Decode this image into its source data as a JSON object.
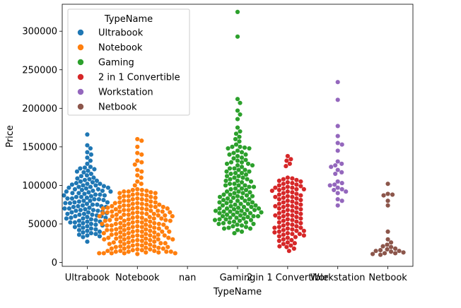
{
  "chart_data": {
    "type": "scatter",
    "subtype": "swarm",
    "xlabel": "TypeName",
    "ylabel": "Price",
    "categories": [
      "Ultrabook",
      "Notebook",
      "nan",
      "Gaming",
      "2 in 1 Convertible",
      "Workstation",
      "Netbook"
    ],
    "ylim": [
      -5000,
      335000
    ],
    "yticks": [
      0,
      50000,
      100000,
      150000,
      200000,
      250000,
      300000
    ],
    "grid": false,
    "legend": {
      "title": "TypeName",
      "placement": "top-left",
      "entries": [
        "Ultrabook",
        "Notebook",
        "Gaming",
        "2 in 1 Convertible",
        "Workstation",
        "Netbook"
      ]
    },
    "colors": {
      "Ultrabook": "#1f77b4",
      "Notebook": "#ff7f0e",
      "Gaming": "#2ca02c",
      "2 in 1 Convertible": "#d62728",
      "Workstation": "#9467bd",
      "Netbook": "#8c564b"
    },
    "series": [
      {
        "name": "Ultrabook",
        "values": [
          166000,
          152000,
          148000,
          143000,
          140000,
          136000,
          132000,
          128000,
          124000,
          123000,
          122000,
          121000,
          119000,
          118000,
          117000,
          115000,
          113000,
          112000,
          110000,
          109000,
          108000,
          107000,
          106000,
          105000,
          104000,
          103000,
          102000,
          101000,
          100000,
          99000,
          98000,
          97000,
          96000,
          95000,
          94000,
          93000,
          92000,
          91000,
          90000,
          89000,
          88000,
          87000,
          86000,
          85000,
          84000,
          83000,
          82000,
          81000,
          80000,
          79000,
          78000,
          77000,
          76000,
          75000,
          74000,
          73000,
          72000,
          71000,
          70000,
          69000,
          68000,
          67000,
          66000,
          65000,
          64000,
          63000,
          62000,
          61000,
          60000,
          59000,
          58000,
          57000,
          56000,
          55000,
          54000,
          53000,
          52000,
          51000,
          50000,
          49000,
          48000,
          47000,
          46000,
          45000,
          44000,
          43000,
          42000,
          41000,
          40000,
          39000,
          38000,
          37000,
          36000,
          35000,
          34000,
          33000,
          27000,
          100000,
          95000,
          90000,
          85000,
          80000,
          75000,
          70000,
          65000,
          60000,
          98000,
          93000,
          88000,
          83000,
          78000,
          73000,
          68000,
          63000,
          58000,
          53000,
          48000,
          102000,
          97000,
          92000,
          87000,
          82000,
          77000,
          72000,
          67000,
          62000,
          57000,
          52000
        ]
      },
      {
        "name": "Notebook",
        "values": [
          160000,
          158000,
          150000,
          142000,
          140000,
          132000,
          130000,
          127000,
          120000,
          118000,
          113000,
          110000,
          105000,
          102000,
          100000,
          95000,
          94000,
          93000,
          92000,
          91000,
          90000,
          89000,
          88000,
          87000,
          86000,
          85000,
          84000,
          83000,
          82000,
          81000,
          80000,
          79000,
          78000,
          77000,
          76000,
          75000,
          74000,
          73000,
          72000,
          71000,
          70000,
          69000,
          68000,
          67000,
          66000,
          65000,
          64000,
          63000,
          62000,
          61000,
          60000,
          59000,
          58000,
          57000,
          56000,
          55000,
          54000,
          53000,
          52000,
          51000,
          50000,
          49000,
          48000,
          47000,
          46000,
          45000,
          44000,
          43000,
          42000,
          41000,
          40000,
          39000,
          38000,
          37000,
          36000,
          35000,
          34000,
          33000,
          32000,
          31000,
          30000,
          29000,
          28000,
          27000,
          26000,
          25000,
          24000,
          23000,
          22000,
          21000,
          20000,
          19000,
          18000,
          17000,
          16000,
          15000,
          14000,
          13000,
          12000,
          11000,
          80000,
          75000,
          70000,
          65000,
          60000,
          55000,
          50000,
          45000,
          40000,
          35000,
          30000,
          25000,
          20000,
          15000,
          12000,
          78000,
          72000,
          66000,
          60000,
          54000,
          48000,
          42000,
          36000,
          30000,
          24000,
          18000,
          13000,
          82000,
          76000,
          70000,
          64000,
          58000,
          52000,
          46000,
          40000,
          34000,
          28000,
          22000,
          16000,
          12000,
          84000,
          77000,
          68000,
          59000,
          50000,
          41000,
          32000,
          23000,
          14000,
          86000,
          74000,
          62000,
          50000,
          38000,
          26000,
          14000,
          88000,
          70000,
          56000,
          44000,
          32000,
          20000,
          12000,
          90000,
          72000,
          54000,
          36000,
          18000,
          92000,
          66000,
          40000,
          14000,
          94000,
          62000,
          30000,
          12000,
          35000,
          42000,
          48000,
          58000,
          64000,
          71000,
          27000,
          33000,
          39000,
          45000,
          51000,
          57000,
          63000,
          69000,
          17000,
          21000,
          29000,
          37000,
          43000,
          49000,
          53000,
          61000,
          67000,
          73000,
          19000,
          15000,
          25000,
          31000,
          47000,
          55000,
          65000
        ]
      },
      {
        "name": "Gaming",
        "values": [
          325000,
          293000,
          212000,
          207000,
          197000,
          192000,
          186000,
          175000,
          170000,
          167000,
          163000,
          160000,
          157000,
          153000,
          150000,
          149000,
          148000,
          145000,
          143000,
          140000,
          138000,
          135000,
          133000,
          130000,
          128000,
          126000,
          124000,
          122000,
          120000,
          118000,
          116000,
          114000,
          112000,
          110000,
          108000,
          106000,
          104000,
          102000,
          100000,
          98000,
          96000,
          94000,
          92000,
          90000,
          88000,
          86000,
          84000,
          82000,
          80000,
          78000,
          76000,
          74000,
          72000,
          70000,
          68000,
          66000,
          64000,
          62000,
          60000,
          58000,
          56000,
          54000,
          52000,
          50000,
          48000,
          46000,
          44000,
          42000,
          40000,
          38000,
          150000,
          140000,
          130000,
          120000,
          110000,
          100000,
          90000,
          80000,
          75000,
          70000,
          65000,
          60000,
          55000,
          50000,
          45000,
          148000,
          136000,
          126000,
          116000,
          106000,
          96000,
          86000,
          78000,
          72000,
          66000,
          62000,
          58000,
          53000,
          47000,
          142000,
          132000,
          122000,
          112000,
          102000,
          92000,
          84000,
          76000,
          68000,
          63000,
          57000,
          51000,
          44000,
          128000,
          118000,
          108000,
          98000,
          88000,
          81000,
          73000,
          67000,
          61000,
          55000,
          49000,
          115000,
          105000,
          95000,
          87000,
          79000,
          71000,
          64000,
          59000,
          52000,
          100000,
          91000,
          83000,
          77000,
          69000,
          65000,
          56000,
          85000,
          74000,
          67000,
          60000,
          70000
        ]
      },
      {
        "name": "2 in 1 Convertible",
        "values": [
          138000,
          134000,
          132000,
          128000,
          125000,
          110000,
          108000,
          106000,
          104000,
          102000,
          100000,
          98000,
          96000,
          94000,
          92000,
          90000,
          88000,
          86000,
          84000,
          82000,
          80000,
          78000,
          76000,
          74000,
          72000,
          70000,
          68000,
          66000,
          64000,
          62000,
          60000,
          58000,
          56000,
          54000,
          52000,
          50000,
          48000,
          46000,
          44000,
          42000,
          40000,
          38000,
          36000,
          34000,
          32000,
          30000,
          28000,
          26000,
          24000,
          22000,
          20000,
          18000,
          15000,
          105000,
          97000,
          89000,
          81000,
          73000,
          65000,
          57000,
          49000,
          41000,
          33000,
          25000,
          101000,
          93000,
          85000,
          77000,
          69000,
          61000,
          53000,
          45000,
          37000,
          29000,
          107000,
          95000,
          83000,
          71000,
          59000,
          47000,
          35000,
          103000,
          91000,
          79000,
          67000,
          55000,
          43000,
          99000,
          87000,
          75000,
          63000,
          51000,
          39000,
          97000,
          73000,
          45000,
          109000,
          85000,
          61000,
          41000,
          21000,
          37000,
          95000
        ]
      },
      {
        "name": "Workstation",
        "values": [
          234000,
          211000,
          177000,
          164000,
          155000,
          153000,
          145000,
          131000,
          128000,
          126000,
          124000,
          120000,
          117000,
          115000,
          105000,
          103000,
          101000,
          100000,
          97000,
          95000,
          94000,
          92000,
          90000,
          82000,
          80000,
          74000
        ]
      },
      {
        "name": "Netbook",
        "values": [
          102000,
          89000,
          88000,
          87000,
          80000,
          74000,
          40000,
          30000,
          26000,
          23000,
          21000,
          20000,
          18000,
          17000,
          16000,
          15000,
          15000,
          14000,
          13000,
          12000,
          12000,
          11000,
          10000
        ]
      }
    ]
  }
}
